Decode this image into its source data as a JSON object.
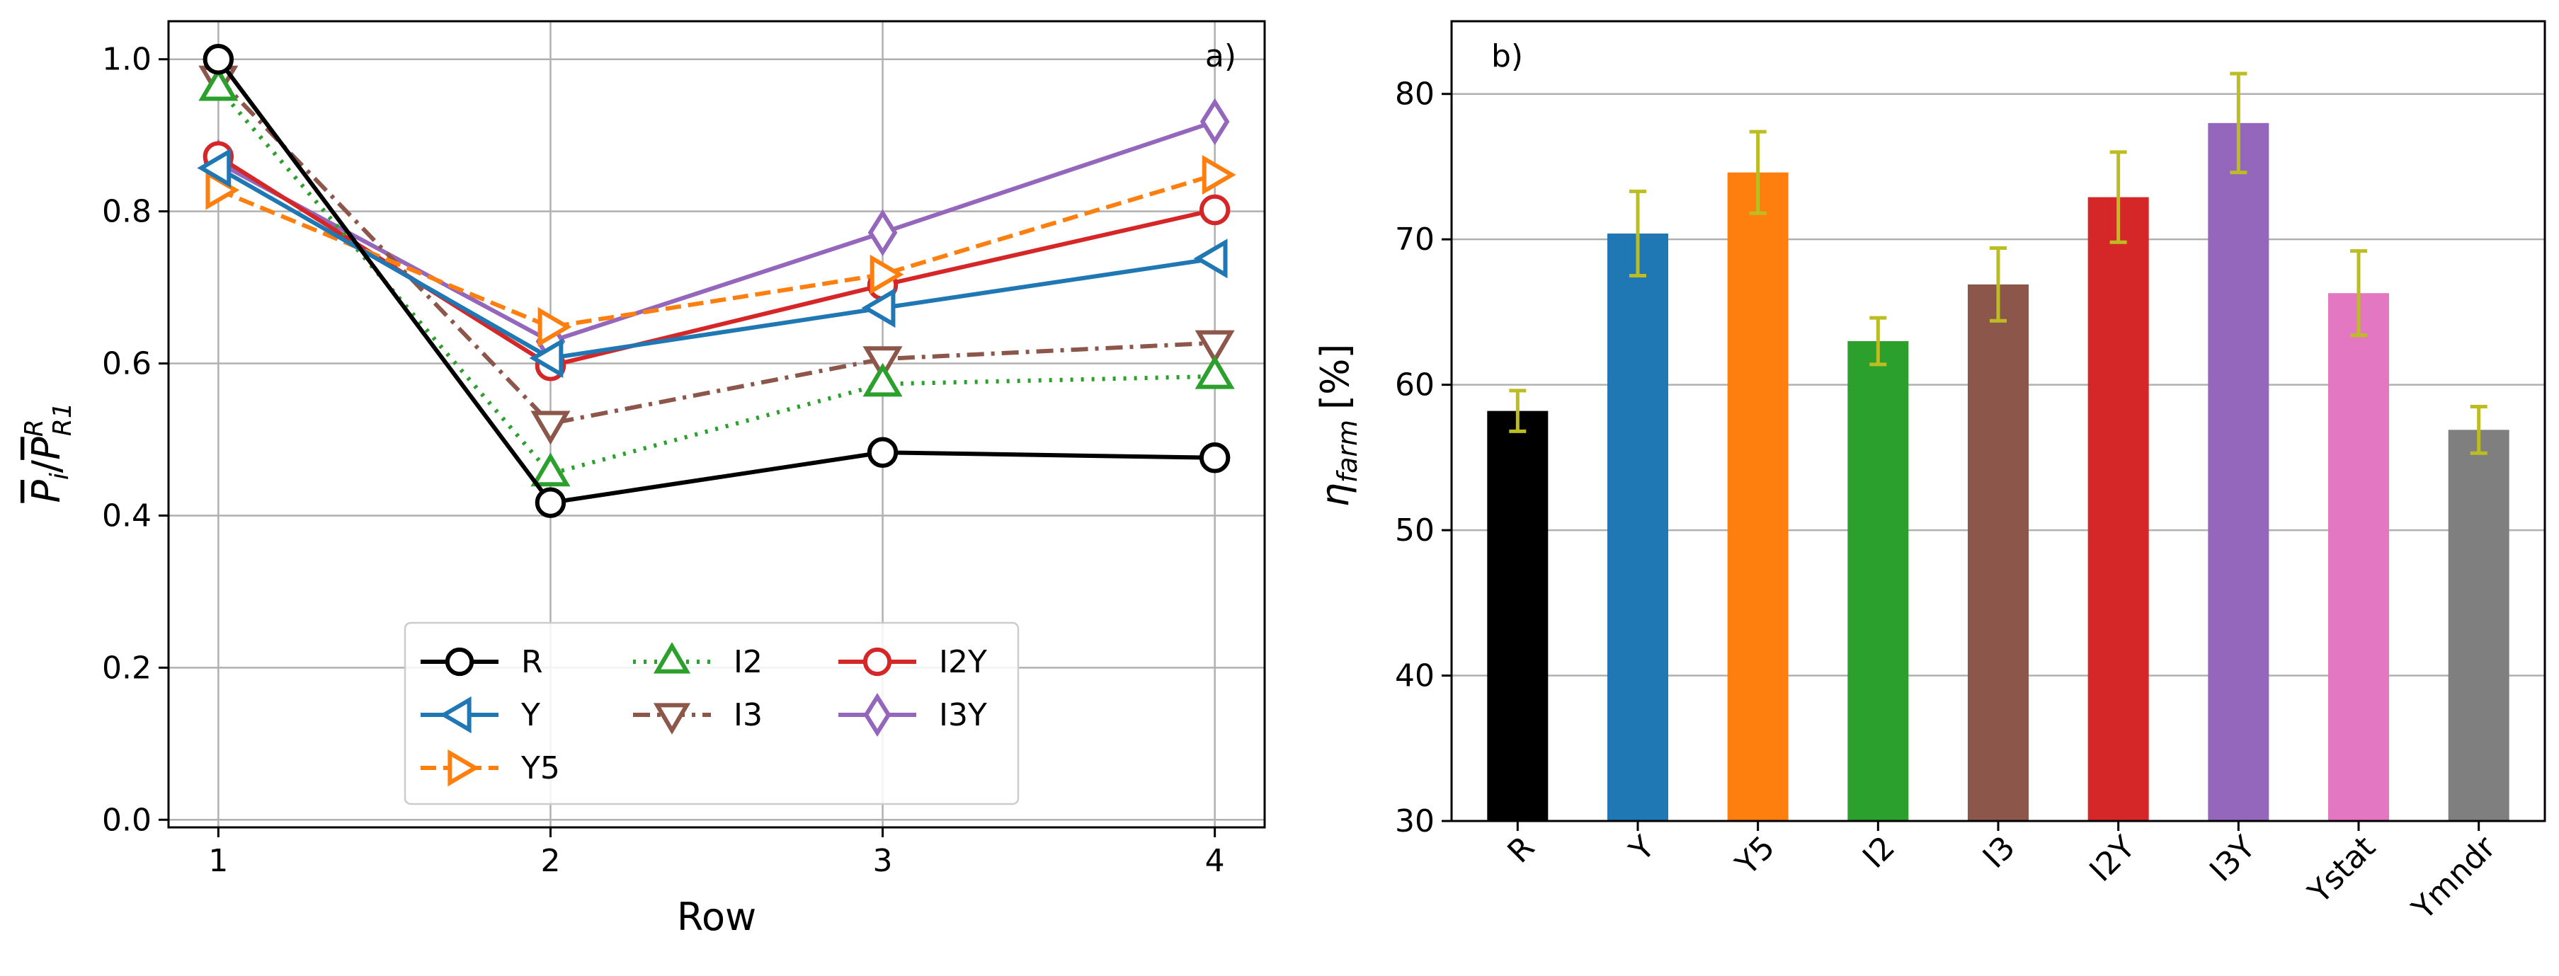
{
  "chart_data": [
    {
      "type": "line",
      "panel_label": "a)",
      "xlabel": "Row",
      "ylabel": "P̄ᵢ/P̄ᴿR1",
      "ylabel_parts": {
        "base_i": "P",
        "sub_i": "i",
        "slash": "/",
        "base_r": "P",
        "sup_r": "R",
        "sub_r": "R1"
      },
      "x_ticks": [
        "1",
        "2",
        "3",
        "4"
      ],
      "y_ticks": [
        "0.0",
        "0.2",
        "0.4",
        "0.6",
        "0.8",
        "1.0"
      ],
      "xlim": [
        0.85,
        4.15
      ],
      "ylim": [
        -0.01,
        1.05
      ],
      "grid": true,
      "legend_position": "bottom-center",
      "x": [
        1,
        2,
        3,
        4
      ],
      "series": [
        {
          "name": "R",
          "values": [
            1.0,
            0.417,
            0.483,
            0.476
          ],
          "color": "#000000",
          "marker": "circle",
          "dash": "solid"
        },
        {
          "name": "Y",
          "values": [
            0.857,
            0.607,
            0.673,
            0.738
          ],
          "color": "#1f77b4",
          "marker": "triangle-left",
          "dash": "solid"
        },
        {
          "name": "Y5",
          "values": [
            0.828,
            0.648,
            0.717,
            0.848
          ],
          "color": "#ff7f0e",
          "marker": "triangle-right",
          "dash": "dashed"
        },
        {
          "name": "I2",
          "values": [
            0.962,
            0.455,
            0.573,
            0.583
          ],
          "color": "#2ca02c",
          "marker": "triangle-up",
          "dash": "dotted"
        },
        {
          "name": "I3",
          "values": [
            0.975,
            0.521,
            0.606,
            0.627
          ],
          "color": "#8c564b",
          "marker": "triangle-down",
          "dash": "dashdot"
        },
        {
          "name": "I2Y",
          "values": [
            0.872,
            0.597,
            0.703,
            0.802
          ],
          "color": "#d62728",
          "marker": "circle",
          "dash": "solid"
        },
        {
          "name": "I3Y",
          "values": [
            0.864,
            0.629,
            0.772,
            0.918
          ],
          "color": "#9467bd",
          "marker": "diamond",
          "dash": "solid"
        }
      ]
    },
    {
      "type": "bar",
      "panel_label": "b)",
      "ylabel": "η_farm [%]",
      "ylabel_parts": {
        "base": "η",
        "sub": "farm",
        "unit": "[%]"
      },
      "categories": [
        "R",
        "Y",
        "Y5",
        "I2",
        "I3",
        "I2Y",
        "I3Y",
        "Ystat",
        "Ymndr"
      ],
      "values": [
        58.2,
        70.4,
        74.6,
        63.0,
        66.9,
        72.9,
        78.0,
        66.3,
        56.9
      ],
      "errors": [
        1.4,
        2.9,
        2.8,
        1.6,
        2.5,
        3.1,
        3.4,
        2.9,
        1.6
      ],
      "colors": [
        "#000000",
        "#1f77b4",
        "#ff7f0e",
        "#2ca02c",
        "#8c564b",
        "#d62728",
        "#9467bd",
        "#e377c2",
        "#7f7f7f"
      ],
      "error_color": "#bcbd22",
      "y_ticks": [
        "30",
        "40",
        "50",
        "60",
        "70",
        "80"
      ],
      "ylim": [
        30,
        85
      ],
      "grid": true
    }
  ]
}
